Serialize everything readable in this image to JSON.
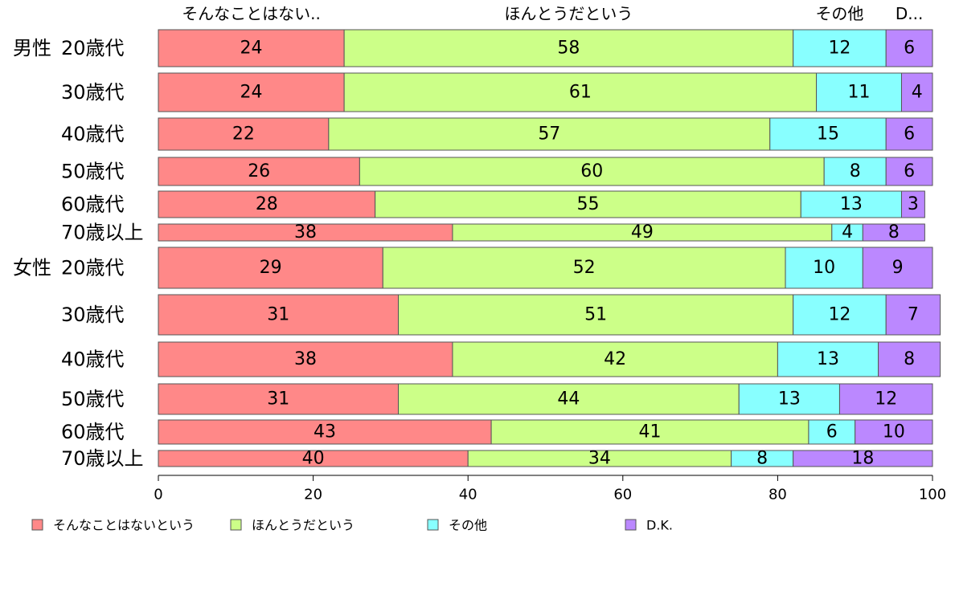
{
  "chart_data": {
    "type": "bar",
    "orientation": "horizontal",
    "stacked": true,
    "xlim": [
      0,
      100
    ],
    "x_ticks": [
      "0",
      "20",
      "40",
      "60",
      "80",
      "100"
    ],
    "top_labels": [
      "そんなことはない..",
      "ほんとうだという",
      "その他",
      "D..."
    ],
    "groups": [
      {
        "label": "男性",
        "categories": [
          "20歳代",
          "30歳代",
          "40歳代",
          "50歳代",
          "60歳代",
          "70歳以上"
        ]
      },
      {
        "label": "女性",
        "categories": [
          "20歳代",
          "30歳代",
          "40歳代",
          "50歳代",
          "60歳代",
          "70歳以上"
        ]
      }
    ],
    "series": [
      {
        "name": "そんなことはないという",
        "color": "#ff8888",
        "values": [
          24,
          24,
          22,
          26,
          28,
          38,
          29,
          31,
          38,
          31,
          43,
          40
        ]
      },
      {
        "name": "ほんとうだという",
        "color": "#ccff88",
        "values": [
          58,
          61,
          57,
          60,
          55,
          49,
          52,
          51,
          42,
          44,
          41,
          34
        ]
      },
      {
        "name": "その他",
        "color": "#88ffff",
        "values": [
          12,
          11,
          15,
          8,
          13,
          4,
          10,
          12,
          13,
          13,
          6,
          8
        ]
      },
      {
        "name": "D.K.",
        "color": "#bb88ff",
        "values": [
          6,
          4,
          6,
          6,
          3,
          8,
          9,
          7,
          8,
          12,
          10,
          18
        ]
      }
    ],
    "legend_position": "bottom",
    "grid": false
  }
}
